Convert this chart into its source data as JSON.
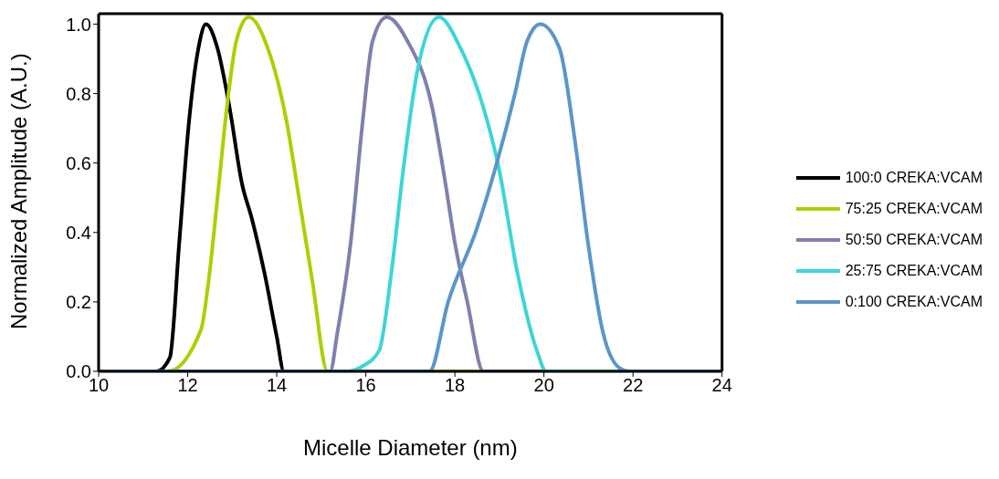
{
  "chart_data": {
    "type": "line",
    "xlabel": "Micelle Diameter (nm)",
    "ylabel": "Normalized Amplitude (A.U.)",
    "xlim": [
      10,
      24
    ],
    "xticks": [
      10,
      12,
      14,
      16,
      18,
      20,
      22,
      24
    ],
    "ylim": [
      0,
      1.03
    ],
    "yticks": [
      {
        "value": 0,
        "label": "0.0"
      },
      {
        "value": 0.2,
        "label": "0.2"
      },
      {
        "value": 0.4,
        "label": "0.4"
      },
      {
        "value": 0.6,
        "label": "0.6"
      },
      {
        "value": 0.8,
        "label": "0.8"
      },
      {
        "value": 1,
        "label": "1.0"
      }
    ],
    "grid": false,
    "legend": "right",
    "marker": "none",
    "line_style": "solid",
    "series": [
      {
        "name": "100:0 CREKA:VCAM",
        "color": "#000000",
        "x": [
          10,
          11.3,
          11.6,
          11.81,
          12.03,
          12.24,
          12.41,
          12.67,
          12.94,
          13.22,
          13.44,
          13.73,
          14.0,
          14.16,
          24
        ],
        "values": [
          0,
          0,
          0.04,
          0.37,
          0.72,
          0.93,
          1.0,
          0.93,
          0.76,
          0.54,
          0.44,
          0.28,
          0.1,
          0,
          0
        ]
      },
      {
        "name": "75:25 CREKA:VCAM",
        "color": "#a9d100",
        "x": [
          10,
          11.56,
          12.3,
          12.45,
          12.67,
          12.88,
          13.09,
          13.37,
          13.8,
          14.22,
          14.5,
          14.8,
          15.14,
          24
        ],
        "values": [
          0,
          0,
          0.12,
          0.24,
          0.5,
          0.76,
          0.95,
          1.02,
          0.93,
          0.72,
          0.5,
          0.26,
          0,
          0
        ]
      },
      {
        "name": "50:50 CREKA:VCAM",
        "color": "#7e80ad",
        "x": [
          10,
          15.2,
          15.36,
          15.66,
          15.93,
          16.15,
          16.47,
          16.94,
          17.49,
          17.79,
          18.0,
          18.28,
          18.64,
          24
        ],
        "values": [
          0,
          0,
          0.11,
          0.37,
          0.72,
          0.95,
          1.02,
          0.95,
          0.76,
          0.54,
          0.37,
          0.2,
          0,
          0
        ]
      },
      {
        "name": "25:75 CREKA:VCAM",
        "color": "#3cd6d6",
        "x": [
          10,
          15.6,
          15.93,
          16.3,
          16.57,
          16.85,
          17.15,
          17.64,
          18.13,
          18.64,
          18.98,
          19.41,
          19.84,
          20.05,
          24
        ],
        "values": [
          0,
          0,
          0.015,
          0.06,
          0.28,
          0.59,
          0.86,
          1.02,
          0.93,
          0.76,
          0.59,
          0.28,
          0.06,
          0,
          0
        ]
      },
      {
        "name": "0:100 CREKA:VCAM",
        "color": "#5b96c8",
        "x": [
          10,
          17.43,
          17.85,
          18.49,
          18.92,
          19.35,
          19.62,
          19.92,
          20.35,
          20.69,
          20.99,
          21.33,
          21.69,
          21.9,
          24
        ],
        "values": [
          0,
          0,
          0.2,
          0.41,
          0.59,
          0.8,
          0.95,
          1.0,
          0.93,
          0.67,
          0.37,
          0.11,
          0.01,
          0,
          0
        ]
      }
    ]
  }
}
